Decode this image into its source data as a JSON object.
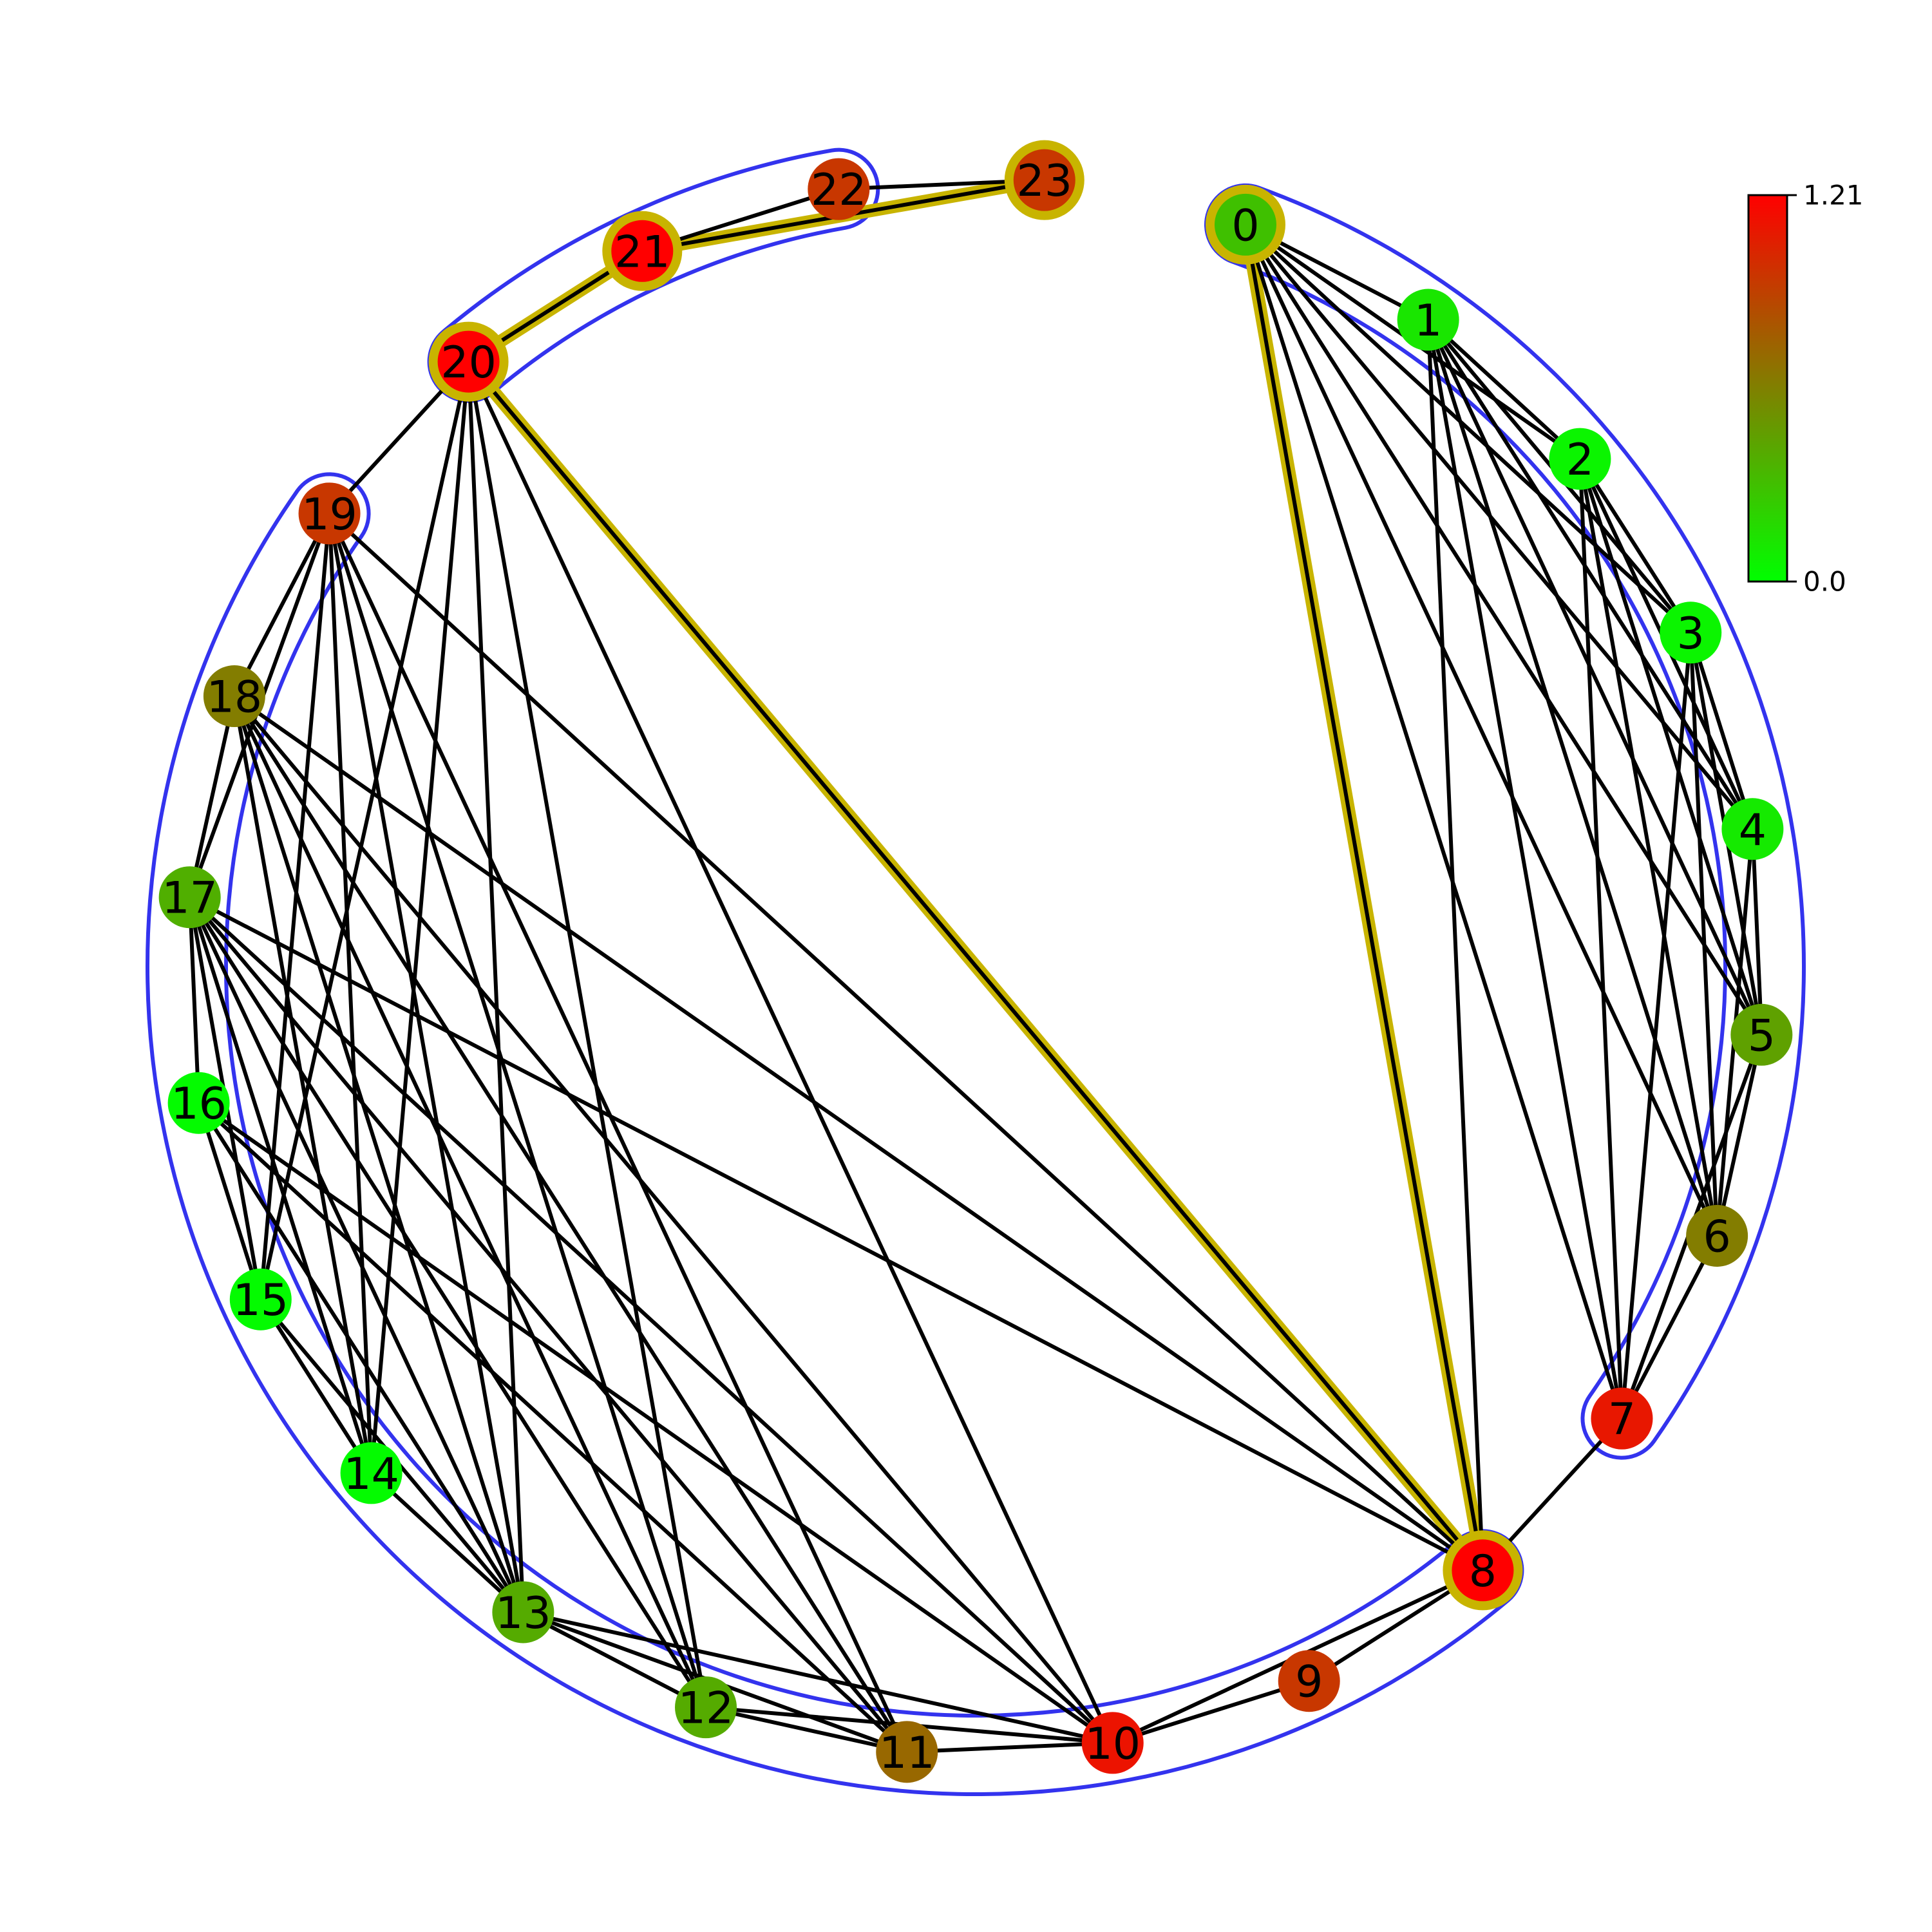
{
  "colorbar": {
    "max_label": "1.21",
    "min_label": "0.0",
    "max_value": 1.21,
    "min_value": 0.0,
    "low_color": "#00ff00",
    "mid_color": "#808000",
    "high_color": "#ff0000"
  },
  "styles": {
    "edge_color": "#000000",
    "highlight_color": "#c8b400",
    "group_outline_color": "#3333ee"
  },
  "nodes": [
    {
      "id": "0",
      "value": 0.3
    },
    {
      "id": "1",
      "value": 0.12
    },
    {
      "id": "2",
      "value": 0.05
    },
    {
      "id": "3",
      "value": 0.05
    },
    {
      "id": "4",
      "value": 0.1
    },
    {
      "id": "5",
      "value": 0.45
    },
    {
      "id": "6",
      "value": 0.62
    },
    {
      "id": "7",
      "value": 1.1
    },
    {
      "id": "8",
      "value": 1.21
    },
    {
      "id": "9",
      "value": 0.95
    },
    {
      "id": "10",
      "value": 1.12
    },
    {
      "id": "11",
      "value": 0.72
    },
    {
      "id": "12",
      "value": 0.4
    },
    {
      "id": "13",
      "value": 0.4
    },
    {
      "id": "14",
      "value": 0.02
    },
    {
      "id": "15",
      "value": 0.02
    },
    {
      "id": "16",
      "value": 0.02
    },
    {
      "id": "17",
      "value": 0.38
    },
    {
      "id": "18",
      "value": 0.62
    },
    {
      "id": "19",
      "value": 0.95
    },
    {
      "id": "20",
      "value": 1.21
    },
    {
      "id": "21",
      "value": 1.21
    },
    {
      "id": "22",
      "value": 0.95
    },
    {
      "id": "23",
      "value": 0.95
    }
  ],
  "highlighted_nodes": [
    0,
    8,
    20,
    21,
    23
  ],
  "highlighted_path": [
    [
      23,
      21
    ],
    [
      21,
      20
    ],
    [
      20,
      8
    ],
    [
      8,
      0
    ]
  ],
  "edges": [
    [
      0,
      1
    ],
    [
      0,
      2
    ],
    [
      0,
      3
    ],
    [
      0,
      4
    ],
    [
      0,
      5
    ],
    [
      0,
      6
    ],
    [
      0,
      7
    ],
    [
      0,
      8
    ],
    [
      1,
      2
    ],
    [
      1,
      3
    ],
    [
      1,
      4
    ],
    [
      1,
      5
    ],
    [
      1,
      6
    ],
    [
      1,
      7
    ],
    [
      1,
      8
    ],
    [
      2,
      3
    ],
    [
      2,
      4
    ],
    [
      2,
      5
    ],
    [
      2,
      6
    ],
    [
      2,
      7
    ],
    [
      3,
      4
    ],
    [
      3,
      5
    ],
    [
      3,
      6
    ],
    [
      3,
      7
    ],
    [
      4,
      5
    ],
    [
      4,
      6
    ],
    [
      5,
      6
    ],
    [
      5,
      7
    ],
    [
      6,
      7
    ],
    [
      7,
      8
    ],
    [
      8,
      9
    ],
    [
      8,
      10
    ],
    [
      8,
      17
    ],
    [
      8,
      18
    ],
    [
      8,
      19
    ],
    [
      8,
      20
    ],
    [
      9,
      10
    ],
    [
      10,
      11
    ],
    [
      10,
      12
    ],
    [
      10,
      13
    ],
    [
      10,
      16
    ],
    [
      10,
      17
    ],
    [
      10,
      18
    ],
    [
      10,
      20
    ],
    [
      11,
      12
    ],
    [
      11,
      13
    ],
    [
      11,
      16
    ],
    [
      11,
      17
    ],
    [
      11,
      18
    ],
    [
      11,
      19
    ],
    [
      12,
      13
    ],
    [
      12,
      17
    ],
    [
      12,
      18
    ],
    [
      12,
      19
    ],
    [
      12,
      20
    ],
    [
      13,
      14
    ],
    [
      13,
      15
    ],
    [
      13,
      16
    ],
    [
      13,
      17
    ],
    [
      13,
      18
    ],
    [
      13,
      19
    ],
    [
      13,
      20
    ],
    [
      14,
      15
    ],
    [
      14,
      17
    ],
    [
      14,
      18
    ],
    [
      14,
      19
    ],
    [
      14,
      20
    ],
    [
      15,
      16
    ],
    [
      15,
      17
    ],
    [
      15,
      19
    ],
    [
      15,
      20
    ],
    [
      16,
      17
    ],
    [
      17,
      18
    ],
    [
      17,
      19
    ],
    [
      18,
      19
    ],
    [
      19,
      20
    ],
    [
      20,
      21
    ],
    [
      21,
      22
    ],
    [
      21,
      23
    ],
    [
      22,
      23
    ]
  ],
  "groups": [
    {
      "name": "group-outline-0-7",
      "members": [
        0,
        1,
        2,
        3,
        4,
        5,
        6,
        7
      ]
    },
    {
      "name": "group-outline-8-19",
      "members": [
        8,
        9,
        10,
        11,
        12,
        13,
        14,
        15,
        16,
        17,
        18,
        19
      ]
    },
    {
      "name": "group-outline-20-22",
      "members": [
        20,
        21,
        22
      ]
    }
  ]
}
